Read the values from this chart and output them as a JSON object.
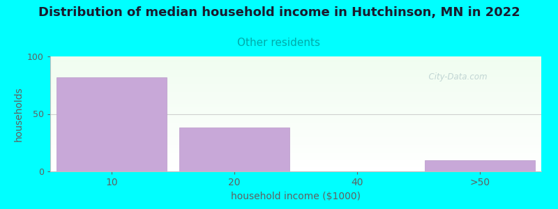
{
  "title": "Distribution of median household income in Hutchinson, MN in 2022",
  "subtitle": "Other residents",
  "xlabel": "household income ($1000)",
  "ylabel": "households",
  "categories": [
    "10",
    "20",
    "40",
    ">50"
  ],
  "values": [
    82,
    38,
    0,
    10
  ],
  "bar_color": "#c8a8d8",
  "bar_edgecolor": "#b898c8",
  "ylim": [
    0,
    100
  ],
  "yticks": [
    0,
    50,
    100
  ],
  "background_color": "#00ffff",
  "title_fontsize": 13,
  "subtitle_color": "#00aaaa",
  "subtitle_fontsize": 11,
  "watermark": "  City-Data.com",
  "watermark_color": "#b8cece",
  "axis_label_color": "#606060",
  "tick_color": "#606060"
}
